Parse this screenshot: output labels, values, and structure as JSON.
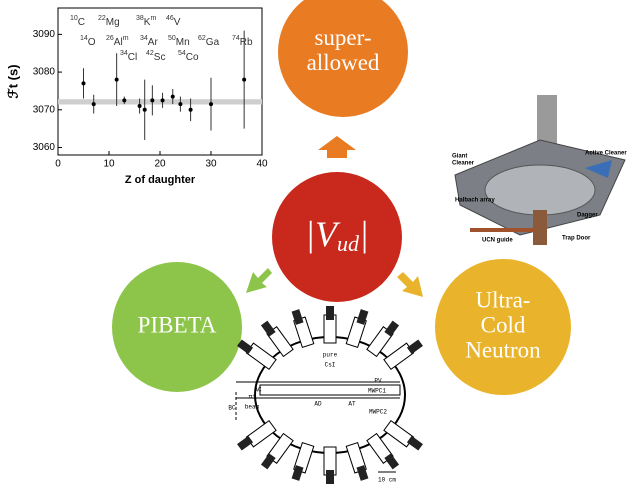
{
  "nodes": [
    {
      "label_lines": [
        "super-",
        "allowed"
      ]
    },
    {
      "label": "|V",
      "subscript": "ud",
      "closing": "|"
    },
    {
      "label_lines": [
        "PIBETA"
      ]
    },
    {
      "label_lines": [
        "Ultra-",
        "Cold",
        "Neutron"
      ]
    }
  ],
  "inset_chart": {
    "type": "scatter",
    "y_label": "ℱt (s)",
    "x_label": "Z of daughter",
    "xlim": [
      0,
      40
    ],
    "xticks": [
      0,
      10,
      20,
      30,
      40
    ],
    "ylim": [
      3058,
      3097
    ],
    "yticks": [
      3060,
      3070,
      3080,
      3090
    ],
    "x": [
      5,
      7,
      11.5,
      13,
      16,
      17,
      18.5,
      20.5,
      22.5,
      24,
      26,
      30,
      36.5
    ],
    "values": [
      3077,
      3071.5,
      3078,
      3072.5,
      3071,
      3070,
      3072.5,
      3072.5,
      3073.5,
      3071.5,
      3070,
      3071.5,
      3078
    ],
    "errors": [
      4,
      2.5,
      7,
      1,
      2,
      8,
      4,
      2,
      2,
      2,
      3,
      7,
      13
    ],
    "band": {
      "value": 3072.1,
      "half_width": 0.7
    },
    "nuclides": [
      [
        {
          "mass": "10",
          "element": "C"
        },
        {
          "mass": "22",
          "element": "Mg"
        },
        {
          "mass": "38",
          "element": "K",
          "suffix": "m"
        },
        {
          "mass": "46",
          "element": "V"
        }
      ],
      [
        {
          "mass": "14",
          "element": "O"
        },
        {
          "mass": "26",
          "element": "Al",
          "suffix": "m"
        },
        {
          "mass": "34",
          "element": "Ar"
        },
        {
          "mass": "50",
          "element": "Mn"
        },
        {
          "mass": "62",
          "element": "Ga"
        },
        {
          "mass": "74",
          "element": "Rb"
        }
      ],
      [
        {
          "mass": "34",
          "element": "Cl"
        },
        {
          "mass": "42",
          "element": "Sc"
        },
        {
          "mass": "54",
          "element": "Co"
        }
      ]
    ]
  },
  "ucn_photo_labels": [
    "Giant",
    "Cleaner",
    "Active Cleaner",
    "Halbach array",
    "Dagger",
    "UCN guide",
    "Trap Door"
  ],
  "pibeta_labels": [
    "pure",
    "CsI",
    "PV",
    "MWPC1",
    "MWPC2",
    "AC",
    "AD",
    "AT",
    "π⁺",
    "beam",
    "BC",
    "10 cm"
  ]
}
